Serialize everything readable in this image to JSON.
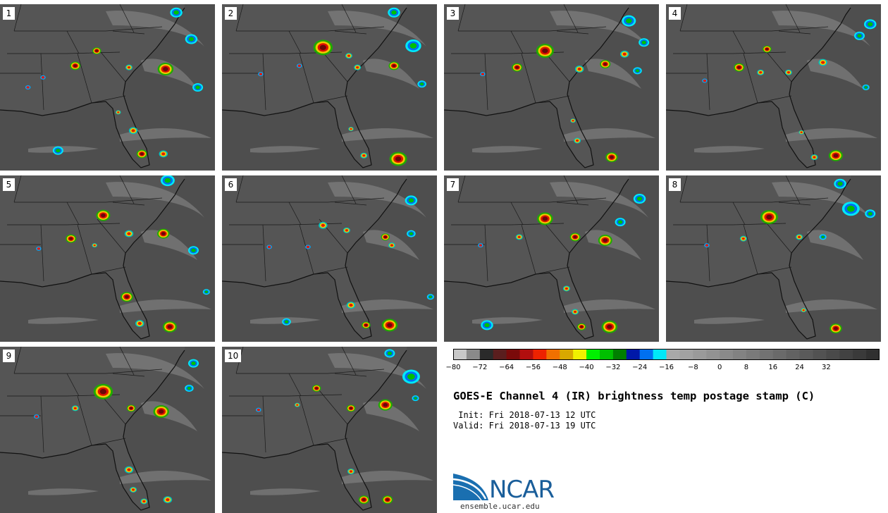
{
  "panels": [
    {
      "label": "1",
      "storms": [
        [
          0.45,
          0.28,
          5,
          "big"
        ],
        [
          0.35,
          0.37,
          6,
          "big"
        ],
        [
          0.77,
          0.39,
          9,
          "big"
        ],
        [
          0.6,
          0.38,
          4,
          "med"
        ],
        [
          0.2,
          0.44,
          3,
          "small"
        ],
        [
          0.13,
          0.5,
          3,
          "small"
        ],
        [
          0.55,
          0.65,
          3,
          "med"
        ],
        [
          0.62,
          0.76,
          5,
          "med"
        ],
        [
          0.66,
          0.9,
          6,
          "big"
        ],
        [
          0.76,
          0.9,
          5,
          "med"
        ],
        [
          0.89,
          0.21,
          7,
          "cold"
        ],
        [
          0.92,
          0.5,
          6,
          "cold"
        ],
        [
          0.27,
          0.88,
          6,
          "cold"
        ],
        [
          0.82,
          0.05,
          7,
          "cold"
        ]
      ]
    },
    {
      "label": "2",
      "storms": [
        [
          0.47,
          0.26,
          11,
          "big"
        ],
        [
          0.59,
          0.31,
          4,
          "med"
        ],
        [
          0.8,
          0.37,
          6,
          "big"
        ],
        [
          0.63,
          0.38,
          4,
          "med"
        ],
        [
          0.18,
          0.42,
          3,
          "small"
        ],
        [
          0.36,
          0.37,
          3,
          "small"
        ],
        [
          0.82,
          0.93,
          10,
          "big"
        ],
        [
          0.66,
          0.91,
          4,
          "med"
        ],
        [
          0.6,
          0.75,
          3,
          "med"
        ],
        [
          0.89,
          0.25,
          9,
          "cold"
        ],
        [
          0.93,
          0.48,
          5,
          "cold"
        ],
        [
          0.8,
          0.05,
          7,
          "cold"
        ]
      ]
    },
    {
      "label": "3",
      "storms": [
        [
          0.47,
          0.28,
          10,
          "big"
        ],
        [
          0.34,
          0.38,
          6,
          "big"
        ],
        [
          0.63,
          0.39,
          5,
          "med"
        ],
        [
          0.75,
          0.36,
          6,
          "big"
        ],
        [
          0.84,
          0.3,
          5,
          "med"
        ],
        [
          0.18,
          0.42,
          3,
          "small"
        ],
        [
          0.62,
          0.82,
          4,
          "med"
        ],
        [
          0.78,
          0.92,
          7,
          "big"
        ],
        [
          0.6,
          0.7,
          3,
          "med"
        ],
        [
          0.86,
          0.1,
          8,
          "cold"
        ],
        [
          0.93,
          0.23,
          6,
          "cold"
        ],
        [
          0.9,
          0.4,
          5,
          "cold"
        ]
      ]
    },
    {
      "label": "4",
      "storms": [
        [
          0.34,
          0.38,
          6,
          "big"
        ],
        [
          0.47,
          0.27,
          5,
          "big"
        ],
        [
          0.44,
          0.41,
          4,
          "med"
        ],
        [
          0.57,
          0.41,
          4,
          "med"
        ],
        [
          0.73,
          0.35,
          5,
          "med"
        ],
        [
          0.18,
          0.46,
          3,
          "small"
        ],
        [
          0.79,
          0.91,
          8,
          "big"
        ],
        [
          0.69,
          0.92,
          4,
          "med"
        ],
        [
          0.63,
          0.77,
          3,
          "med"
        ],
        [
          0.9,
          0.19,
          6,
          "cold"
        ],
        [
          0.95,
          0.12,
          7,
          "cold"
        ],
        [
          0.93,
          0.5,
          4,
          "cold"
        ]
      ]
    },
    {
      "label": "5",
      "storms": [
        [
          0.48,
          0.24,
          8,
          "big"
        ],
        [
          0.33,
          0.38,
          6,
          "big"
        ],
        [
          0.6,
          0.35,
          5,
          "med"
        ],
        [
          0.76,
          0.35,
          7,
          "big"
        ],
        [
          0.44,
          0.42,
          3,
          "med"
        ],
        [
          0.18,
          0.44,
          3,
          "small"
        ],
        [
          0.59,
          0.73,
          7,
          "big"
        ],
        [
          0.65,
          0.89,
          5,
          "med"
        ],
        [
          0.79,
          0.91,
          8,
          "big"
        ],
        [
          0.9,
          0.45,
          6,
          "cold"
        ],
        [
          0.78,
          0.03,
          8,
          "cold"
        ],
        [
          0.96,
          0.7,
          4,
          "cold"
        ]
      ]
    },
    {
      "label": "6",
      "storms": [
        [
          0.47,
          0.3,
          5,
          "med"
        ],
        [
          0.58,
          0.33,
          4,
          "med"
        ],
        [
          0.76,
          0.37,
          5,
          "big"
        ],
        [
          0.79,
          0.42,
          4,
          "med"
        ],
        [
          0.4,
          0.43,
          3,
          "small"
        ],
        [
          0.22,
          0.43,
          3,
          "small"
        ],
        [
          0.6,
          0.78,
          5,
          "med"
        ],
        [
          0.67,
          0.9,
          5,
          "big"
        ],
        [
          0.78,
          0.9,
          9,
          "big"
        ],
        [
          0.88,
          0.15,
          7,
          "cold"
        ],
        [
          0.88,
          0.35,
          5,
          "cold"
        ],
        [
          0.3,
          0.88,
          5,
          "cold"
        ],
        [
          0.97,
          0.73,
          4,
          "cold"
        ]
      ]
    },
    {
      "label": "7",
      "storms": [
        [
          0.47,
          0.26,
          9,
          "big"
        ],
        [
          0.61,
          0.37,
          6,
          "big"
        ],
        [
          0.75,
          0.39,
          8,
          "big"
        ],
        [
          0.35,
          0.37,
          4,
          "med"
        ],
        [
          0.17,
          0.42,
          3,
          "small"
        ],
        [
          0.57,
          0.68,
          4,
          "med"
        ],
        [
          0.61,
          0.82,
          4,
          "med"
        ],
        [
          0.64,
          0.91,
          5,
          "big"
        ],
        [
          0.77,
          0.91,
          9,
          "big"
        ],
        [
          0.82,
          0.28,
          6,
          "cold"
        ],
        [
          0.91,
          0.14,
          7,
          "cold"
        ],
        [
          0.2,
          0.9,
          7,
          "cold"
        ]
      ]
    },
    {
      "label": "8",
      "storms": [
        [
          0.48,
          0.25,
          10,
          "big"
        ],
        [
          0.36,
          0.38,
          4,
          "med"
        ],
        [
          0.19,
          0.42,
          3,
          "small"
        ],
        [
          0.62,
          0.37,
          4,
          "med"
        ],
        [
          0.64,
          0.81,
          3,
          "med"
        ],
        [
          0.79,
          0.92,
          7,
          "big"
        ],
        [
          0.86,
          0.2,
          10,
          "cold"
        ],
        [
          0.95,
          0.23,
          6,
          "cold"
        ],
        [
          0.73,
          0.37,
          4,
          "cold"
        ],
        [
          0.81,
          0.05,
          7,
          "cold"
        ]
      ]
    },
    {
      "label": "9",
      "storms": [
        [
          0.48,
          0.27,
          11,
          "big"
        ],
        [
          0.61,
          0.37,
          5,
          "big"
        ],
        [
          0.75,
          0.39,
          9,
          "big"
        ],
        [
          0.35,
          0.37,
          4,
          "med"
        ],
        [
          0.17,
          0.42,
          3,
          "small"
        ],
        [
          0.6,
          0.74,
          5,
          "med"
        ],
        [
          0.62,
          0.86,
          4,
          "med"
        ],
        [
          0.67,
          0.93,
          4,
          "med"
        ],
        [
          0.78,
          0.92,
          5,
          "med"
        ],
        [
          0.9,
          0.1,
          6,
          "cold"
        ],
        [
          0.88,
          0.25,
          5,
          "cold"
        ]
      ]
    },
    {
      "label": "10",
      "storms": [
        [
          0.44,
          0.25,
          5,
          "big"
        ],
        [
          0.6,
          0.37,
          5,
          "big"
        ],
        [
          0.76,
          0.35,
          8,
          "big"
        ],
        [
          0.35,
          0.35,
          3,
          "med"
        ],
        [
          0.17,
          0.38,
          3,
          "small"
        ],
        [
          0.6,
          0.75,
          4,
          "med"
        ],
        [
          0.66,
          0.92,
          6,
          "big"
        ],
        [
          0.77,
          0.92,
          6,
          "big"
        ],
        [
          0.88,
          0.18,
          10,
          "cold"
        ],
        [
          0.9,
          0.31,
          4,
          "cold"
        ],
        [
          0.78,
          0.04,
          6,
          "cold"
        ]
      ]
    }
  ],
  "colorbar": {
    "colors": [
      "#c8c8c8",
      "#8a8a8a",
      "#2a2a2a",
      "#5a1e1e",
      "#7a0a0a",
      "#b20e0e",
      "#ee2200",
      "#f07000",
      "#d8a800",
      "#f0f000",
      "#00f000",
      "#00c000",
      "#007f00",
      "#0018a8",
      "#0070f0",
      "#00e8f8",
      "#a8a8a8",
      "#a2a2a2",
      "#9a9a9a",
      "#929292",
      "#8a8a8a",
      "#828282",
      "#7a7a7a",
      "#727272",
      "#6a6a6a",
      "#626262",
      "#5a5a5a",
      "#525252",
      "#4a4a4a",
      "#424242",
      "#3a3a3a",
      "#303030"
    ],
    "ticks": [
      "−80",
      "−72",
      "−64",
      "−56",
      "−48",
      "−40",
      "−32",
      "−24",
      "−16",
      "−8",
      "0",
      "8",
      "16",
      "24",
      "32"
    ]
  },
  "title": "GOES-E Channel 4 (IR) brightness temp postage stamp (C)",
  "init": " Init: Fri 2018-07-13 12 UTC",
  "valid": "Valid: Fri 2018-07-13 19 UTC",
  "logo": {
    "text": "NCAR",
    "url": "ensemble.ucar.edu",
    "color": "#1a5e9a"
  }
}
